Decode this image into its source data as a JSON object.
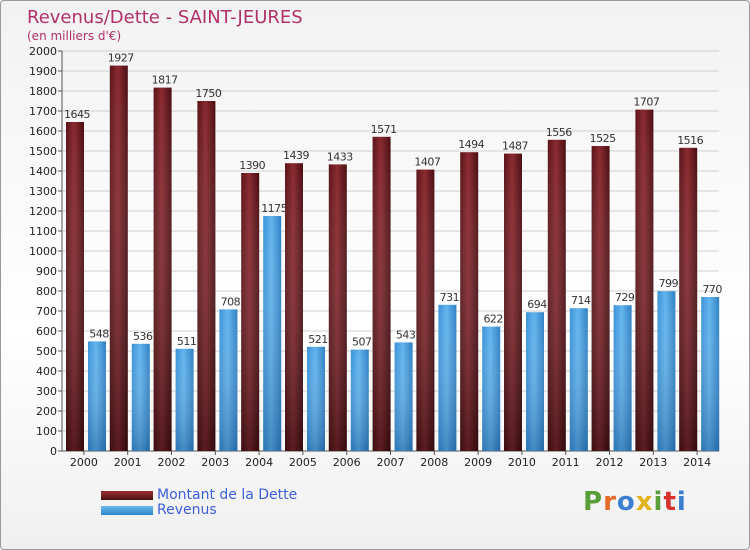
{
  "header": {
    "title": "Revenus/Dette - SAINT-JEURES",
    "subtitle": "(en milliers d'€)"
  },
  "legend": {
    "items": [
      {
        "label": "Montant de la Dette",
        "color": "#7a1f24"
      },
      {
        "label": "Revenus",
        "color": "#4aa3e6"
      }
    ]
  },
  "logo": {
    "letters": [
      "P",
      "r",
      "o",
      "x",
      "i",
      "t",
      "i"
    ],
    "colors": [
      "#5a9e3a",
      "#e36c2a",
      "#3c7fd1",
      "#e3b31c",
      "#5a9e3a",
      "#d8302a",
      "#3c7fd1"
    ]
  },
  "chart_data": {
    "type": "bar",
    "categories": [
      "2000",
      "2001",
      "2002",
      "2003",
      "2004",
      "2005",
      "2006",
      "2007",
      "2008",
      "2009",
      "2010",
      "2011",
      "2012",
      "2013",
      "2014"
    ],
    "series": [
      {
        "name": "Montant de la Dette",
        "color": "#7a1f24",
        "values": [
          1645,
          1927,
          1817,
          1750,
          1390,
          1439,
          1433,
          1571,
          1407,
          1494,
          1487,
          1556,
          1525,
          1707,
          1516
        ]
      },
      {
        "name": "Revenus",
        "color": "#4aa3e6",
        "values": [
          548,
          536,
          511,
          708,
          1175,
          521,
          507,
          543,
          731,
          622,
          694,
          714,
          729,
          799,
          770
        ]
      }
    ],
    "ylim": [
      0,
      2000
    ],
    "ytick_step": 100,
    "grid": true
  }
}
